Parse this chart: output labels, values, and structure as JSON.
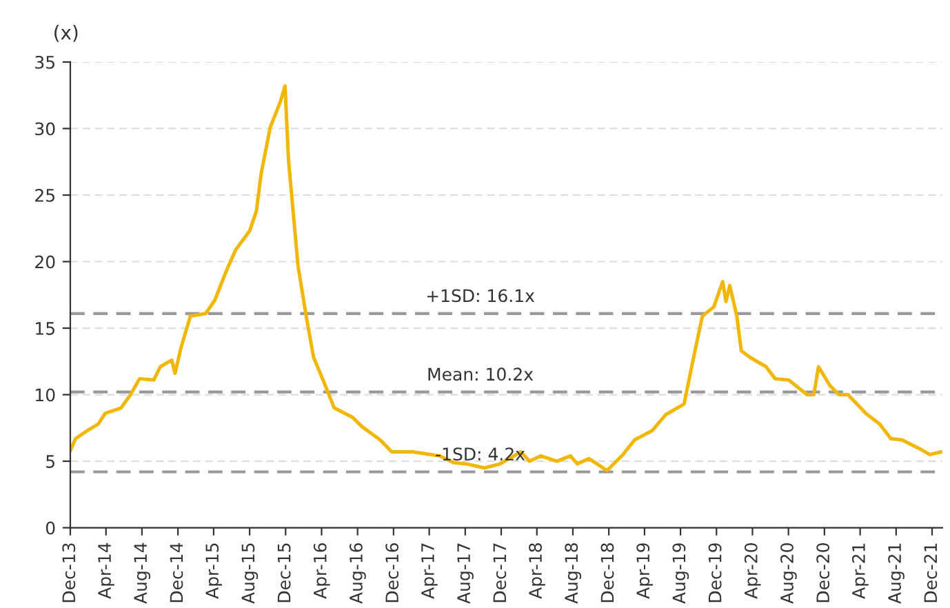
{
  "chart_data": {
    "type": "line",
    "ylabel": "(x)",
    "x": [
      "2013-12-01",
      "2013-12-19",
      "2014-01-28",
      "2014-03-06",
      "2014-03-29",
      "2014-05-22",
      "2014-06-23",
      "2014-07-24",
      "2014-09-10",
      "2014-10-02",
      "2014-11-10",
      "2014-11-21",
      "2014-12-11",
      "2015-01-12",
      "2015-03-05",
      "2015-04-05",
      "2015-05-14",
      "2015-06-15",
      "2015-08-01",
      "2015-08-24",
      "2015-09-09",
      "2015-10-10",
      "2015-11-13",
      "2015-11-29",
      "2015-12-11",
      "2016-01-12",
      "2016-02-12",
      "2016-03-05",
      "2016-04-06",
      "2016-05-14",
      "2016-07-15",
      "2016-08-16",
      "2016-10-17",
      "2016-11-25",
      "2017-02-04",
      "2017-05-06",
      "2017-06-22",
      "2017-08-04",
      "2017-10-05",
      "2017-11-28",
      "2017-12-28",
      "2018-02-06",
      "2018-03-07",
      "2018-04-15",
      "2018-06-08",
      "2018-07-24",
      "2018-08-16",
      "2018-09-24",
      "2018-11-25",
      "2019-01-18",
      "2019-02-26",
      "2019-04-27",
      "2019-06-12",
      "2019-08-13",
      "2019-09-21",
      "2019-10-14",
      "2019-11-22",
      "2019-12-22",
      "2020-01-02",
      "2020-01-15",
      "2020-02-08",
      "2020-02-23",
      "2020-03-24",
      "2020-05-17",
      "2020-06-17",
      "2020-08-02",
      "2020-10-03",
      "2020-10-26",
      "2020-11-11",
      "2020-12-19",
      "2021-01-19",
      "2021-02-19",
      "2021-04-20",
      "2021-06-06",
      "2021-07-14",
      "2021-08-22",
      "2021-10-23",
      "2021-11-23",
      "2022-01-01"
    ],
    "series": [
      {
        "color": "#f2b705",
        "values": [
          5.8,
          6.7,
          7.3,
          7.8,
          8.6,
          9.0,
          10.0,
          11.2,
          11.1,
          12.1,
          12.6,
          11.6,
          13.5,
          15.9,
          16.1,
          17.1,
          19.3,
          20.9,
          22.3,
          23.8,
          26.6,
          30.1,
          32.0,
          33.2,
          27.6,
          19.7,
          15.5,
          12.8,
          11.1,
          9.0,
          8.3,
          7.6,
          6.6,
          5.7,
          5.7,
          5.4,
          4.9,
          4.8,
          4.5,
          4.8,
          5.2,
          5.7,
          5.0,
          5.4,
          5.0,
          5.4,
          4.8,
          5.2,
          4.3,
          5.5,
          6.6,
          7.3,
          8.5,
          9.3,
          13.5,
          15.9,
          16.6,
          18.5,
          17.0,
          18.2,
          15.9,
          13.3,
          12.8,
          12.1,
          11.2,
          11.1,
          10.0,
          10.0,
          12.1,
          10.7,
          10.0,
          10.0,
          8.6,
          7.8,
          6.7,
          6.6,
          5.9,
          5.5,
          5.7
        ]
      }
    ],
    "xlim": [
      "2013-12-01",
      "2022-01-05"
    ],
    "xticks": [
      {
        "value": "2013-12-01",
        "label": "Dec-13"
      },
      {
        "value": "2014-04-01",
        "label": "Apr-14"
      },
      {
        "value": "2014-08-01",
        "label": "Aug-14"
      },
      {
        "value": "2014-12-01",
        "label": "Dec-14"
      },
      {
        "value": "2015-04-01",
        "label": "Apr-15"
      },
      {
        "value": "2015-08-01",
        "label": "Aug-15"
      },
      {
        "value": "2015-12-01",
        "label": "Dec-15"
      },
      {
        "value": "2016-04-01",
        "label": "Apr-16"
      },
      {
        "value": "2016-08-01",
        "label": "Aug-16"
      },
      {
        "value": "2016-12-01",
        "label": "Dec-16"
      },
      {
        "value": "2017-04-01",
        "label": "Apr-17"
      },
      {
        "value": "2017-08-01",
        "label": "Aug-17"
      },
      {
        "value": "2017-12-01",
        "label": "Dec-17"
      },
      {
        "value": "2018-04-01",
        "label": "Apr-18"
      },
      {
        "value": "2018-08-01",
        "label": "Aug-18"
      },
      {
        "value": "2018-12-01",
        "label": "Dec-18"
      },
      {
        "value": "2019-04-01",
        "label": "Apr-19"
      },
      {
        "value": "2019-08-01",
        "label": "Aug-19"
      },
      {
        "value": "2019-12-01",
        "label": "Dec-19"
      },
      {
        "value": "2020-04-01",
        "label": "Apr-20"
      },
      {
        "value": "2020-08-01",
        "label": "Aug-20"
      },
      {
        "value": "2020-12-01",
        "label": "Dec-20"
      },
      {
        "value": "2021-04-01",
        "label": "Apr-21"
      },
      {
        "value": "2021-08-01",
        "label": "Aug-21"
      },
      {
        "value": "2021-12-01",
        "label": "Dec-21"
      }
    ],
    "ylim": [
      0,
      35
    ],
    "yticks": [
      0,
      5,
      10,
      15,
      20,
      25,
      30,
      35
    ],
    "grid": "y",
    "line_style": "solid",
    "marker": "none",
    "ref_lines": [
      {
        "axis": "y",
        "value": 16.1,
        "label": "+1SD: 16.1x",
        "color": "#999999",
        "line_style": "dashed"
      },
      {
        "axis": "y",
        "value": 10.2,
        "label": "Mean: 10.2x",
        "color": "#999999",
        "line_style": "dashed"
      },
      {
        "axis": "y",
        "value": 4.2,
        "label": "-1SD: 4.2x",
        "color": "#999999",
        "line_style": "dashed"
      }
    ]
  }
}
